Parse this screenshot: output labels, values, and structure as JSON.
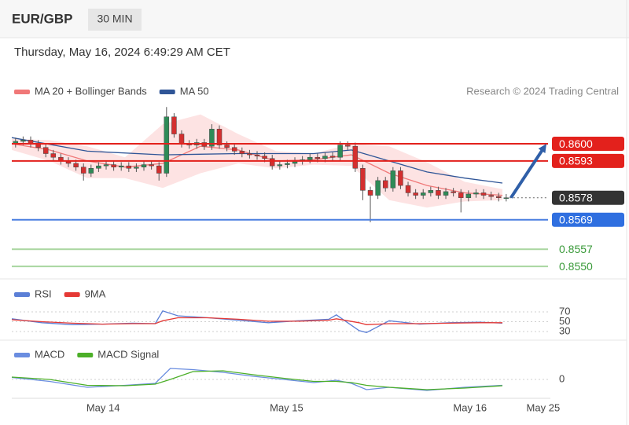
{
  "header": {
    "symbol": "EUR/GBP",
    "interval": "30 MIN",
    "timestamp": "Thursday, May 16, 2024 6:49:29 AM CET"
  },
  "chart_data": [
    {
      "type": "candlestick",
      "credit": "Research © 2024 Trading Central",
      "up_color": "#2e8b57",
      "down_color": "#d32f2f",
      "xlim": [
        0,
        71.35
      ],
      "ylim": [
        0.85465,
        0.8617
      ],
      "open": [
        0.86,
        0.8601,
        0.86015,
        0.86,
        0.85985,
        0.8596,
        0.85945,
        0.8593,
        0.8592,
        0.85905,
        0.8588,
        0.859,
        0.8591,
        0.85915,
        0.85905,
        0.8591,
        0.859,
        0.85905,
        0.85915,
        0.8591,
        0.8588,
        0.8611,
        0.8604,
        0.86,
        0.85995,
        0.86005,
        0.8599,
        0.8606,
        0.85995,
        0.85985,
        0.8597,
        0.8596,
        0.85955,
        0.8595,
        0.8594,
        0.8591,
        0.85915,
        0.8592,
        0.8593,
        0.85935,
        0.85945,
        0.8594,
        0.8595,
        0.85945,
        0.85995,
        0.8599,
        0.859,
        0.8581,
        0.8579,
        0.8585,
        0.8582,
        0.8589,
        0.8583,
        0.858,
        0.8579,
        0.858,
        0.8581,
        0.8579,
        0.85805,
        0.858,
        0.8578,
        0.85795,
        0.858,
        0.8579,
        0.85785,
        0.8578
      ],
      "high": [
        0.86025,
        0.8603,
        0.8603,
        0.86015,
        0.86,
        0.85975,
        0.8596,
        0.85945,
        0.85935,
        0.8592,
        0.85915,
        0.85925,
        0.8593,
        0.8593,
        0.85925,
        0.85925,
        0.8592,
        0.8593,
        0.8593,
        0.85925,
        0.8615,
        0.86125,
        0.86055,
        0.86015,
        0.8602,
        0.8602,
        0.8608,
        0.86075,
        0.8601,
        0.86,
        0.85985,
        0.85975,
        0.8597,
        0.85965,
        0.85955,
        0.8593,
        0.85935,
        0.85945,
        0.8595,
        0.8596,
        0.8596,
        0.85965,
        0.85965,
        0.8601,
        0.8601,
        0.86005,
        0.85915,
        0.85825,
        0.85865,
        0.85865,
        0.85905,
        0.85905,
        0.85845,
        0.85815,
        0.85815,
        0.85825,
        0.85825,
        0.8582,
        0.8582,
        0.85815,
        0.8581,
        0.85815,
        0.85815,
        0.85805,
        0.858,
        0.85795
      ],
      "low": [
        0.85985,
        0.85995,
        0.85985,
        0.8597,
        0.85945,
        0.8593,
        0.85915,
        0.85905,
        0.8589,
        0.8585,
        0.85865,
        0.85885,
        0.85895,
        0.8589,
        0.8589,
        0.85885,
        0.85885,
        0.8589,
        0.85895,
        0.8585,
        0.85865,
        0.86025,
        0.85985,
        0.8598,
        0.8598,
        0.85975,
        0.85975,
        0.8598,
        0.8597,
        0.85955,
        0.85945,
        0.8594,
        0.85935,
        0.85925,
        0.85895,
        0.85895,
        0.859,
        0.85905,
        0.85915,
        0.8592,
        0.85925,
        0.85925,
        0.8593,
        0.8593,
        0.85975,
        0.85885,
        0.8577,
        0.8568,
        0.85775,
        0.85805,
        0.85805,
        0.85815,
        0.85785,
        0.85775,
        0.85775,
        0.85785,
        0.85775,
        0.85775,
        0.85785,
        0.8572,
        0.85765,
        0.8578,
        0.85775,
        0.8577,
        0.85765,
        0.85765
      ],
      "close": [
        0.8601,
        0.86015,
        0.86,
        0.85985,
        0.8596,
        0.85945,
        0.8593,
        0.8592,
        0.85905,
        0.8588,
        0.859,
        0.8591,
        0.85915,
        0.85905,
        0.8591,
        0.859,
        0.85905,
        0.85915,
        0.8591,
        0.8588,
        0.8611,
        0.8604,
        0.86,
        0.85995,
        0.86005,
        0.8599,
        0.8606,
        0.85995,
        0.85985,
        0.8597,
        0.8596,
        0.85955,
        0.8595,
        0.8594,
        0.8591,
        0.85915,
        0.8592,
        0.8593,
        0.85935,
        0.85945,
        0.8594,
        0.8595,
        0.85945,
        0.85995,
        0.8599,
        0.859,
        0.8581,
        0.8579,
        0.8585,
        0.8582,
        0.8589,
        0.8583,
        0.858,
        0.8579,
        0.858,
        0.8581,
        0.8579,
        0.85805,
        0.858,
        0.8578,
        0.85795,
        0.858,
        0.8579,
        0.85785,
        0.8578,
        0.8578
      ],
      "series": [
        {
          "name": "MA 20 + Bollinger Bands",
          "color": "#f07878",
          "band_color": "#fddcdc",
          "x": [
            0,
            5,
            10,
            15,
            20,
            25,
            30,
            35,
            40,
            45,
            50,
            55,
            60,
            65
          ],
          "values": [
            0.86,
            0.85975,
            0.8593,
            0.85905,
            0.8592,
            0.8599,
            0.85975,
            0.8593,
            0.85935,
            0.85955,
            0.8588,
            0.8583,
            0.858,
            0.8579
          ],
          "upper": [
            0.8602,
            0.86015,
            0.8599,
            0.85945,
            0.8608,
            0.8612,
            0.8604,
            0.8597,
            0.8596,
            0.86,
            0.8599,
            0.85925,
            0.85845,
            0.85815
          ],
          "lower": [
            0.85975,
            0.8593,
            0.8586,
            0.8586,
            0.8582,
            0.8588,
            0.8592,
            0.859,
            0.85915,
            0.8591,
            0.8577,
            0.8574,
            0.85765,
            0.8577
          ]
        },
        {
          "name": "MA 50",
          "color": "#2f5597",
          "x": [
            0,
            10,
            20,
            30,
            40,
            45,
            50,
            55,
            60,
            65
          ],
          "values": [
            0.86025,
            0.8597,
            0.85955,
            0.8596,
            0.8596,
            0.85975,
            0.8593,
            0.85885,
            0.8586,
            0.8584
          ]
        }
      ],
      "levels": [
        {
          "value": 0.86,
          "label": "0.8600",
          "color": "#e3211c",
          "line_color": "#e3211c",
          "line": "solid",
          "label_style": "filled"
        },
        {
          "value": 0.8593,
          "label": "0.8593",
          "color": "#e3211c",
          "line_color": "#e3211c",
          "line": "solid",
          "label_style": "filled"
        },
        {
          "value": 0.8578,
          "label": "0.8578",
          "color": "#333333",
          "line_color": "#666666",
          "line": "dotted",
          "label_style": "filled"
        },
        {
          "value": 0.8569,
          "label": "0.8569",
          "color": "#2f6fe0",
          "line_color": "#4a7fe0",
          "line": "solid",
          "label_style": "filled"
        },
        {
          "value": 0.8557,
          "label": "0.8557",
          "color": "#3a9a3a",
          "line_color": "#a9d6a0",
          "line": "solid",
          "label_style": "text"
        },
        {
          "value": 0.855,
          "label": "0.8550",
          "color": "#3a9a3a",
          "line_color": "#a9d6a0",
          "line": "solid",
          "label_style": "text"
        }
      ],
      "arrow_color": "#2f5fa8"
    },
    {
      "type": "line",
      "ylim": [
        14,
        126
      ],
      "yticks": [
        70,
        50,
        30
      ],
      "series": [
        {
          "name": "RSI",
          "color": "#5b7fd6",
          "x": [
            0,
            4,
            8,
            12,
            16,
            19,
            20,
            22,
            26,
            30,
            34,
            38,
            42,
            43,
            46,
            47,
            50,
            54,
            58,
            62,
            65
          ],
          "values": [
            56,
            48,
            44,
            45,
            47,
            46,
            72,
            62,
            58,
            53,
            48,
            52,
            55,
            64,
            32,
            28,
            52,
            45,
            48,
            49,
            47
          ]
        },
        {
          "name": "9MA",
          "color": "#e53935",
          "x": [
            0,
            4,
            8,
            12,
            16,
            19,
            20,
            22,
            26,
            30,
            34,
            38,
            42,
            43,
            46,
            47,
            50,
            54,
            58,
            62,
            65
          ],
          "values": [
            54,
            50,
            47,
            45,
            46,
            46,
            52,
            58,
            58,
            55,
            51,
            51,
            53,
            56,
            48,
            44,
            46,
            46,
            47,
            48,
            48
          ]
        }
      ]
    },
    {
      "type": "line",
      "ylim": [
        -0.00044,
        0.00086
      ],
      "yticks": [
        0
      ],
      "xticks": [
        {
          "value": 12.1,
          "label": "May 14"
        },
        {
          "value": 36.4,
          "label": "May 15"
        },
        {
          "value": 60.7,
          "label": "May 16"
        },
        {
          "value": 70.4,
          "label": "May 25"
        }
      ],
      "series": [
        {
          "name": "MACD",
          "color": "#6a8de0",
          "x": [
            0,
            5,
            10,
            15,
            19,
            21,
            24,
            28,
            32,
            36,
            40,
            43,
            45,
            47,
            50,
            55,
            60,
            65
          ],
          "values": [
            5e-05,
            -5e-05,
            -0.0002,
            -0.00015,
            -0.0001,
            0.00028,
            0.00025,
            0.00018,
            8e-05,
            0,
            -8e-05,
            -2e-05,
            -0.0001,
            -0.00026,
            -0.0002,
            -0.00028,
            -0.0002,
            -0.00015
          ]
        },
        {
          "name": "MACD Signal",
          "color": "#4caf28",
          "x": [
            0,
            5,
            10,
            15,
            19,
            21,
            24,
            28,
            32,
            36,
            40,
            43,
            45,
            47,
            50,
            55,
            60,
            65
          ],
          "values": [
            6e-05,
            0,
            -0.00015,
            -0.00016,
            -0.00012,
            0,
            0.0002,
            0.00022,
            0.00012,
            3e-05,
            -5e-05,
            -5e-05,
            -8e-05,
            -0.00015,
            -0.0002,
            -0.00026,
            -0.00022,
            -0.00016
          ]
        }
      ]
    }
  ]
}
